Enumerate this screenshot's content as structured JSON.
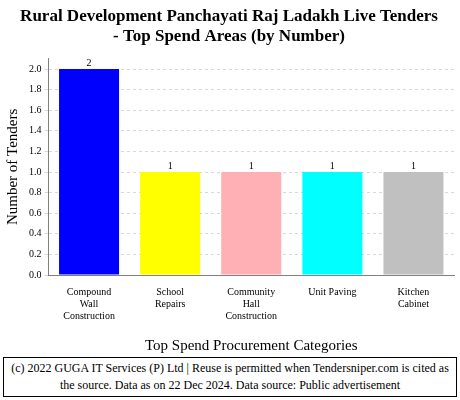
{
  "chart_data": {
    "type": "bar",
    "title": [
      "Rural Development Panchayati Raj Ladakh Live Tenders",
      "- Top Spend Areas (by Number)"
    ],
    "x_label": "Top Spend Procurement Categories",
    "y_label": "Number of Tenders",
    "categories": [
      "Compound Wall Construction",
      "School Repairs",
      "Community Hall Construction",
      "Unit Paving",
      "Kitchen Cabinet"
    ],
    "values": [
      2,
      1,
      1,
      1,
      1
    ],
    "colors": [
      "#0000ff",
      "#ffff00",
      "#ffb0b4",
      "#00ffff",
      "#c0c0c0"
    ],
    "ylim": [
      0,
      2.1
    ],
    "yticks": [
      {
        "value": 0,
        "label": "0.0"
      },
      0.2,
      0.4,
      0.6,
      0.8,
      {
        "value": 1,
        "label": "1.0"
      },
      1.2,
      1.4,
      1.6,
      1.8,
      {
        "value": 2,
        "label": "2.0"
      }
    ],
    "grid": true,
    "data_labels": true,
    "footer": "(c) 2022 GUGA IT Services (P) Ltd | Reuse is permitted when Tendersniper.com is cited as the source. Data as on 22 Dec 2024. Data source: Public advertisement"
  }
}
